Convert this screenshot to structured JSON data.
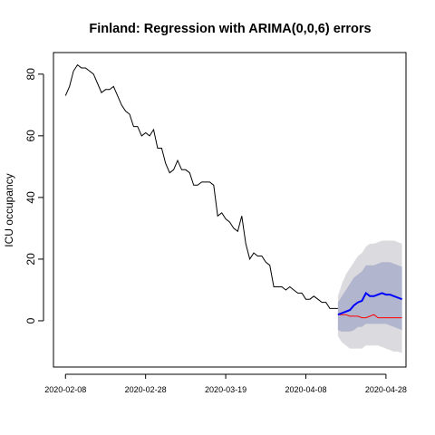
{
  "chart_data": {
    "type": "line",
    "title": "Finland: Regression with ARIMA(0,0,6) errors",
    "xlabel": "",
    "ylabel": "ICU occupancy",
    "x_ticks": [
      "2020-02-08",
      "2020-02-28",
      "2020-03-19",
      "2020-04-08",
      "2020-04-28"
    ],
    "x_start_date": "2020-02-08",
    "y_ticks": [
      0,
      20,
      40,
      60,
      80
    ],
    "ylim": [
      -15,
      87
    ],
    "xlim": [
      "2020-02-05",
      "2020-05-03"
    ],
    "grid": false,
    "observed": {
      "dates": [
        "2020-02-08",
        "2020-02-09",
        "2020-02-10",
        "2020-02-11",
        "2020-02-12",
        "2020-02-13",
        "2020-02-14",
        "2020-02-15",
        "2020-02-16",
        "2020-02-17",
        "2020-02-18",
        "2020-02-19",
        "2020-02-20",
        "2020-02-21",
        "2020-02-22",
        "2020-02-23",
        "2020-02-24",
        "2020-02-25",
        "2020-02-26",
        "2020-02-27",
        "2020-02-28",
        "2020-02-29",
        "2020-03-01",
        "2020-03-02",
        "2020-03-03",
        "2020-03-04",
        "2020-03-05",
        "2020-03-06",
        "2020-03-07",
        "2020-03-08",
        "2020-03-09",
        "2020-03-10",
        "2020-03-11",
        "2020-03-12",
        "2020-03-13",
        "2020-03-14",
        "2020-03-15",
        "2020-03-16",
        "2020-03-17",
        "2020-03-18",
        "2020-03-19",
        "2020-03-20",
        "2020-03-21",
        "2020-03-22",
        "2020-03-23",
        "2020-03-24",
        "2020-03-25",
        "2020-03-26",
        "2020-03-27",
        "2020-03-28",
        "2020-03-29",
        "2020-03-30",
        "2020-03-31",
        "2020-04-01",
        "2020-04-02",
        "2020-04-03",
        "2020-04-04",
        "2020-04-05",
        "2020-04-06",
        "2020-04-07",
        "2020-04-08",
        "2020-04-09",
        "2020-04-10",
        "2020-04-11",
        "2020-04-12",
        "2020-04-13",
        "2020-04-14",
        "2020-04-15",
        "2020-04-16"
      ],
      "values": [
        73,
        76,
        81,
        83,
        82,
        82,
        81,
        80,
        77,
        74,
        75,
        75,
        76,
        73,
        70,
        68,
        67,
        63,
        63,
        60,
        61,
        60,
        62,
        56,
        56,
        51,
        48,
        49,
        52,
        49,
        49,
        48,
        44,
        44,
        45,
        45,
        45,
        44,
        34,
        35,
        33,
        32,
        30,
        29,
        34,
        25,
        20,
        22,
        21,
        21,
        19,
        18,
        11,
        11,
        11,
        10,
        11,
        10,
        9,
        9,
        7,
        7,
        8,
        7,
        6,
        6,
        4,
        4,
        4
      ]
    },
    "forecast": {
      "dates": [
        "2020-04-16",
        "2020-04-17",
        "2020-04-18",
        "2020-04-19",
        "2020-04-20",
        "2020-04-21",
        "2020-04-22",
        "2020-04-23",
        "2020-04-24",
        "2020-04-25",
        "2020-04-26",
        "2020-04-27",
        "2020-04-28",
        "2020-04-29",
        "2020-04-30",
        "2020-05-01",
        "2020-05-02"
      ],
      "mean": [
        2,
        2.5,
        3,
        3.5,
        5,
        6,
        6.5,
        9,
        8,
        8,
        8.5,
        9,
        8.5,
        8.5,
        8,
        7.5,
        7
      ],
      "lo80": [
        -3,
        -3.5,
        -3.5,
        -3.5,
        -3,
        -2,
        -2,
        -1,
        -1,
        -1,
        -1,
        -1,
        -1,
        -1.5,
        -2,
        -2.5,
        -3
      ],
      "hi80": [
        6,
        8,
        10,
        12,
        14,
        15,
        16,
        18,
        18,
        18,
        18.5,
        19,
        19,
        19,
        18.5,
        18,
        17.5
      ],
      "lo95": [
        -5,
        -7,
        -8,
        -9,
        -9,
        -9,
        -9,
        -8,
        -8,
        -8,
        -8,
        -8.5,
        -9,
        -9.5,
        -10,
        -10,
        -10.5
      ],
      "hi95": [
        8,
        12,
        15,
        17,
        19,
        21,
        22,
        24,
        25,
        25,
        25.5,
        26,
        26,
        26,
        26,
        25.5,
        25
      ]
    },
    "reference_line": {
      "dates": [
        "2020-04-16",
        "2020-04-17",
        "2020-04-18",
        "2020-04-19",
        "2020-04-20",
        "2020-04-21",
        "2020-04-22",
        "2020-04-23",
        "2020-04-24",
        "2020-04-25",
        "2020-04-26",
        "2020-04-27",
        "2020-04-28",
        "2020-04-29",
        "2020-04-30",
        "2020-05-01",
        "2020-05-02"
      ],
      "values": [
        2,
        2,
        2,
        1.5,
        1.5,
        1.5,
        1,
        1,
        1.5,
        2,
        1,
        1,
        1,
        1,
        1,
        1,
        1
      ]
    },
    "colors": {
      "observed": "#000000",
      "forecast_mean": "#0000ff",
      "reference_line": "#ff0000",
      "band80": "#b1b5ce",
      "band95": "#dbdbdf",
      "axis": "#000000"
    }
  }
}
